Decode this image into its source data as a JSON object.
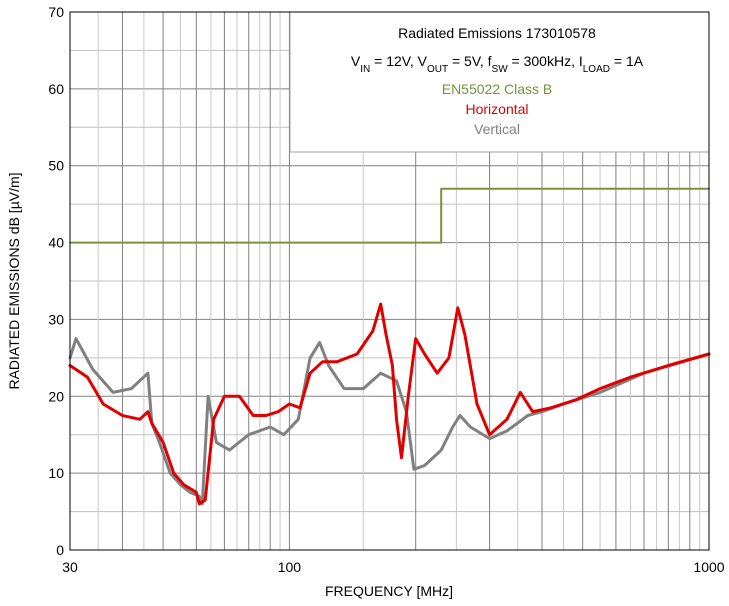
{
  "chart_data": {
    "type": "line",
    "title": "Radiated Emissions 173010578",
    "subtitle": {
      "parts": [
        {
          "t": "V"
        },
        {
          "t": "IN",
          "sub": true
        },
        {
          "t": " = 12V, V"
        },
        {
          "t": "OUT",
          "sub": true
        },
        {
          "t": " = 5V, f"
        },
        {
          "t": "SW",
          "sub": true
        },
        {
          "t": " = 300kHz, I"
        },
        {
          "t": "LOAD",
          "sub": true
        },
        {
          "t": " = 1A"
        }
      ]
    },
    "xlabel": "FREQUENCY [MHz]",
    "ylabel": "RADIATED EMISSIONS dB [µV/m]",
    "x_scale": "log",
    "xlim": [
      30,
      1000
    ],
    "ylim": [
      0,
      70
    ],
    "x_tick_labels": [
      "30",
      "100",
      "1000"
    ],
    "y_tick_labels": [
      "0",
      "10",
      "20",
      "30",
      "40",
      "50",
      "60",
      "70"
    ],
    "grid": true,
    "legend_position": "top-right",
    "series": [
      {
        "name": "EN55022 Class B",
        "color": "#77933c",
        "x": [
          30,
          230,
          230,
          1000
        ],
        "y": [
          40,
          40,
          47,
          47
        ]
      },
      {
        "name": "Horizontal",
        "color": "#e00000",
        "x": [
          30,
          33,
          36,
          40,
          44,
          46,
          47,
          50,
          53,
          56,
          58,
          60,
          61,
          63,
          66,
          70,
          76,
          82,
          88,
          94,
          100,
          106,
          112,
          120,
          130,
          145,
          158,
          165,
          170,
          176,
          180,
          185,
          192,
          200,
          210,
          225,
          240,
          252,
          262,
          280,
          300,
          330,
          355,
          380,
          420,
          480,
          550,
          650,
          800,
          1000
        ],
        "y": [
          24,
          22.5,
          19,
          17.5,
          17,
          18,
          16.5,
          14,
          10,
          8.5,
          8,
          7.5,
          6,
          6.5,
          17,
          20,
          20,
          17.5,
          17.5,
          18,
          19,
          18.5,
          23,
          24.5,
          24.5,
          25.5,
          28.5,
          32,
          28,
          24,
          17,
          12,
          20,
          27.5,
          25.5,
          23,
          25,
          31.5,
          28,
          19,
          15,
          17,
          20.5,
          18,
          18.5,
          19.5,
          21,
          22.5,
          24,
          25.5
        ]
      },
      {
        "name": "Vertical",
        "color": "#808080",
        "x": [
          30,
          31,
          34,
          38,
          42,
          46,
          47,
          49,
          52,
          55,
          58,
          61,
          62,
          64,
          67,
          72,
          80,
          90,
          97,
          105,
          112,
          118,
          124,
          135,
          150,
          165,
          180,
          190,
          198,
          210,
          230,
          245,
          255,
          270,
          300,
          330,
          370,
          400,
          450,
          550,
          700,
          1000
        ],
        "y": [
          25,
          27.5,
          23.5,
          20.5,
          21,
          23,
          16.5,
          14,
          10,
          8.5,
          7.5,
          7,
          6,
          20,
          14,
          13,
          15,
          16,
          15,
          17,
          25,
          27,
          24,
          21,
          21,
          23,
          22,
          18,
          10.5,
          11,
          13,
          16,
          17.5,
          16,
          14.5,
          15.5,
          17.5,
          18,
          19,
          20.5,
          23,
          25.5
        ]
      }
    ]
  }
}
